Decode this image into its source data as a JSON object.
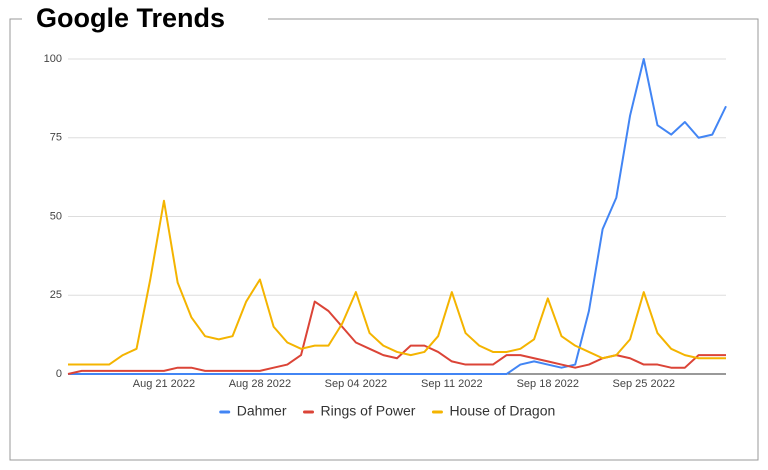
{
  "chart_data": {
    "type": "line",
    "title": "Google Trends",
    "categories": [
      null,
      null,
      null,
      null,
      null,
      null,
      null,
      "Aug 21 2022",
      null,
      null,
      null,
      null,
      null,
      null,
      "Aug 28 2022",
      null,
      null,
      null,
      null,
      null,
      null,
      "Sep 04 2022",
      null,
      null,
      null,
      null,
      null,
      null,
      "Sep 11 2022",
      null,
      null,
      null,
      null,
      null,
      null,
      "Sep 18 2022",
      null,
      null,
      null,
      null,
      null,
      null,
      "Sep 25 2022",
      null,
      null,
      null,
      null,
      null,
      null
    ],
    "series": [
      {
        "name": "Dahmer",
        "color": "#4285f4",
        "values": [
          0,
          0,
          0,
          0,
          0,
          0,
          0,
          0,
          0,
          0,
          0,
          0,
          0,
          0,
          0,
          0,
          0,
          0,
          0,
          0,
          0,
          0,
          0,
          0,
          0,
          0,
          0,
          0,
          0,
          0,
          0,
          0,
          0,
          3,
          4,
          3,
          2,
          3,
          20,
          46,
          56,
          82,
          100,
          79,
          76,
          80,
          75,
          76,
          85
        ]
      },
      {
        "name": "Rings of Power",
        "color": "#db4437",
        "values": [
          0,
          1,
          1,
          1,
          1,
          1,
          1,
          1,
          2,
          2,
          1,
          1,
          1,
          1,
          1,
          2,
          3,
          6,
          23,
          20,
          15,
          10,
          8,
          6,
          5,
          9,
          9,
          7,
          4,
          3,
          3,
          3,
          6,
          6,
          5,
          4,
          3,
          2,
          3,
          5,
          6,
          5,
          3,
          3,
          2,
          2,
          6,
          6,
          6
        ]
      },
      {
        "name": "House of Dragon",
        "color": "#f4b400",
        "values": [
          3,
          3,
          3,
          3,
          6,
          8,
          30,
          55,
          29,
          18,
          12,
          11,
          12,
          23,
          30,
          15,
          10,
          8,
          9,
          9,
          16,
          26,
          13,
          9,
          7,
          6,
          7,
          12,
          26,
          13,
          9,
          7,
          7,
          8,
          11,
          24,
          12,
          9,
          7,
          5,
          6,
          11,
          26,
          13,
          8,
          6,
          5,
          5,
          5
        ]
      }
    ],
    "ylim": [
      0,
      100
    ],
    "yticks": [
      0,
      25,
      50,
      75,
      100
    ],
    "grid": true,
    "legend": "bottom"
  }
}
